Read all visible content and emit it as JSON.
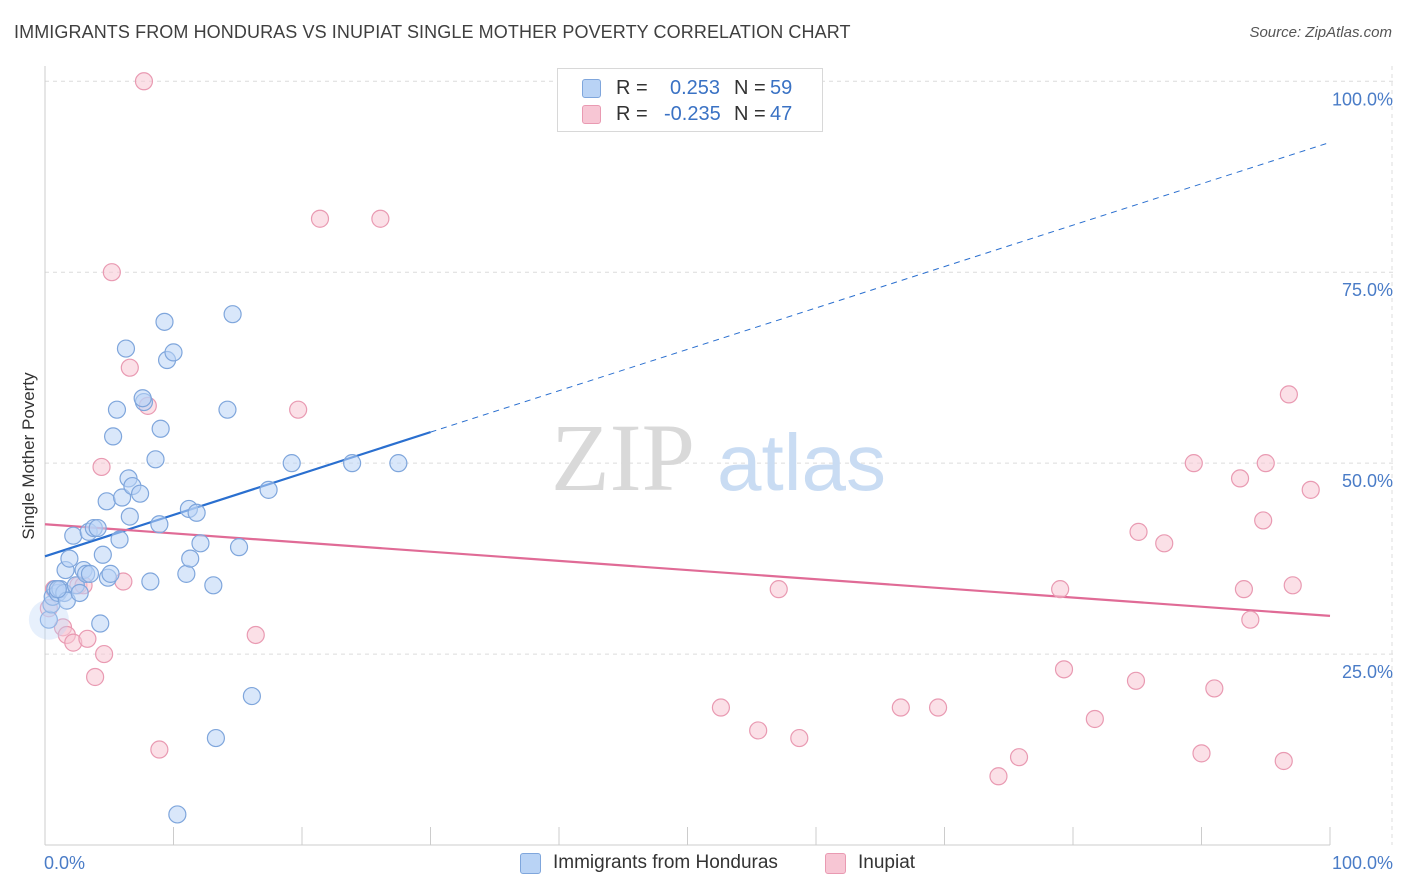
{
  "title": "IMMIGRANTS FROM HONDURAS VS INUPIAT SINGLE MOTHER POVERTY CORRELATION CHART",
  "source": "Source: ZipAtlas.com",
  "watermark": {
    "zip": "ZIP",
    "atlas": "atlas"
  },
  "legend": {
    "series1": {
      "r_label": "R =",
      "r_value": "0.253",
      "n_label": "N =",
      "n_value": "59"
    },
    "series2": {
      "r_label": "R =",
      "r_value": "-0.235",
      "n_label": "N =",
      "n_value": "47"
    }
  },
  "colors": {
    "blue_fill": "#b9d3f5",
    "blue_stroke": "#7fa6dc",
    "blue_line": "#2a6fcf",
    "pink_fill": "#f7c6d4",
    "pink_stroke": "#e99ab2",
    "pink_line": "#e06b96",
    "grid": "#dcdcdc",
    "tick_text": "#4a7cc7"
  },
  "chart_data": {
    "type": "scatter",
    "title": "IMMIGRANTS FROM HONDURAS VS INUPIAT SINGLE MOTHER POVERTY CORRELATION CHART",
    "xlabel": "",
    "ylabel": "Single Mother Poverty",
    "xlim": [
      0,
      100
    ],
    "ylim": [
      0,
      102
    ],
    "x_tick_labels": [
      "0.0%",
      "100.0%"
    ],
    "y_tick_labels": [
      "100.0%",
      "75.0%",
      "50.0%",
      "25.0%"
    ],
    "y_ticks": [
      100,
      75,
      50,
      25
    ],
    "series": [
      {
        "name": "Immigrants from Honduras",
        "points": [
          [
            0.3,
            29.5
          ],
          [
            0.5,
            31.5
          ],
          [
            0.6,
            32.5
          ],
          [
            0.8,
            33.5
          ],
          [
            1.0,
            33.0
          ],
          [
            1.2,
            33.5
          ],
          [
            1.5,
            33.0
          ],
          [
            1.7,
            32.0
          ],
          [
            1.6,
            36.0
          ],
          [
            1.9,
            37.5
          ],
          [
            2.2,
            40.5
          ],
          [
            2.4,
            34.0
          ],
          [
            2.7,
            33.0
          ],
          [
            3.0,
            36.0
          ],
          [
            3.2,
            35.5
          ],
          [
            3.5,
            35.5
          ],
          [
            3.4,
            41.0
          ],
          [
            3.8,
            41.5
          ],
          [
            4.1,
            41.5
          ],
          [
            4.3,
            29.0
          ],
          [
            4.5,
            38.0
          ],
          [
            4.8,
            45.0
          ],
          [
            4.9,
            35.0
          ],
          [
            5.1,
            35.5
          ],
          [
            5.3,
            53.5
          ],
          [
            5.6,
            57.0
          ],
          [
            5.8,
            40.0
          ],
          [
            6.0,
            45.5
          ],
          [
            6.3,
            65.0
          ],
          [
            6.5,
            48.0
          ],
          [
            6.6,
            43.0
          ],
          [
            6.8,
            47.0
          ],
          [
            7.4,
            46.0
          ],
          [
            7.7,
            58.0
          ],
          [
            7.6,
            58.5
          ],
          [
            8.2,
            34.5
          ],
          [
            8.6,
            50.5
          ],
          [
            8.9,
            42.0
          ],
          [
            9.0,
            54.5
          ],
          [
            9.3,
            68.5
          ],
          [
            9.5,
            63.5
          ],
          [
            10.0,
            64.5
          ],
          [
            10.3,
            4.0
          ],
          [
            11.0,
            35.5
          ],
          [
            11.2,
            44.0
          ],
          [
            11.3,
            37.5
          ],
          [
            11.8,
            43.5
          ],
          [
            12.1,
            39.5
          ],
          [
            13.1,
            34.0
          ],
          [
            13.3,
            14.0
          ],
          [
            14.2,
            57.0
          ],
          [
            14.6,
            69.5
          ],
          [
            15.1,
            39.0
          ],
          [
            16.1,
            19.5
          ],
          [
            17.4,
            46.5
          ],
          [
            19.2,
            50.0
          ],
          [
            23.9,
            50.0
          ],
          [
            27.5,
            50.0
          ],
          [
            1.0,
            33.5
          ]
        ]
      },
      {
        "name": "Inupiat",
        "points": [
          [
            0.3,
            31.0
          ],
          [
            0.7,
            33.5
          ],
          [
            1.4,
            28.5
          ],
          [
            1.7,
            27.5
          ],
          [
            2.2,
            26.5
          ],
          [
            2.6,
            34.0
          ],
          [
            3.3,
            27.0
          ],
          [
            3.9,
            22.0
          ],
          [
            4.4,
            49.5
          ],
          [
            4.6,
            25.0
          ],
          [
            5.2,
            75.0
          ],
          [
            6.1,
            34.5
          ],
          [
            6.6,
            62.5
          ],
          [
            7.7,
            100.0
          ],
          [
            8.0,
            57.5
          ],
          [
            8.9,
            12.5
          ],
          [
            16.4,
            27.5
          ],
          [
            19.7,
            57.0
          ],
          [
            21.4,
            82.0
          ],
          [
            26.1,
            82.0
          ],
          [
            3.0,
            34.0
          ],
          [
            52.6,
            18.0
          ],
          [
            55.5,
            15.0
          ],
          [
            57.1,
            33.5
          ],
          [
            58.7,
            14.0
          ],
          [
            66.6,
            18.0
          ],
          [
            69.5,
            18.0
          ],
          [
            74.2,
            9.0
          ],
          [
            75.8,
            11.5
          ],
          [
            79.0,
            33.5
          ],
          [
            79.3,
            23.0
          ],
          [
            81.7,
            16.5
          ],
          [
            85.1,
            41.0
          ],
          [
            84.9,
            21.5
          ],
          [
            87.1,
            39.5
          ],
          [
            89.4,
            50.0
          ],
          [
            90.0,
            12.0
          ],
          [
            91.0,
            20.5
          ],
          [
            93.0,
            48.0
          ],
          [
            93.3,
            33.5
          ],
          [
            93.8,
            29.5
          ],
          [
            94.8,
            42.5
          ],
          [
            95.0,
            50.0
          ],
          [
            96.4,
            11.0
          ],
          [
            97.1,
            34.0
          ],
          [
            96.8,
            59.0
          ],
          [
            98.5,
            46.5
          ]
        ]
      }
    ],
    "trend_lines": [
      {
        "series": "Immigrants from Honduras",
        "from": [
          0,
          37.8
        ],
        "to": [
          100,
          92.0
        ],
        "solid_until_x": 30
      },
      {
        "series": "Inupiat",
        "from": [
          0,
          42.0
        ],
        "to": [
          100,
          30.0
        ]
      }
    ],
    "legend_labels": [
      "Immigrants from Honduras",
      "Inupiat"
    ]
  }
}
